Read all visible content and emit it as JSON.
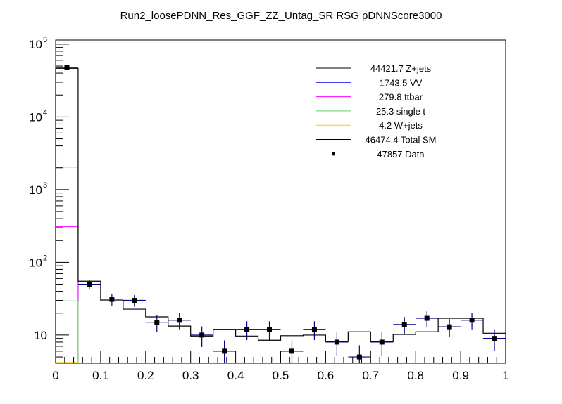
{
  "chart_data": {
    "type": "bar",
    "title": "Run2_loosePDNN_Res_GGF_ZZ_Untag_SR RSG  pDNNScore3000",
    "xlabel": "",
    "ylabel": "",
    "xlim": [
      0,
      1
    ],
    "ylim": [
      4.1,
      114000
    ],
    "yscale": "log",
    "grid": false,
    "legend_placement": "top-right",
    "x_tick_labels": [
      "0",
      "0.1",
      "0.2",
      "0.3",
      "0.4",
      "0.5",
      "0.6",
      "0.7",
      "0.8",
      "0.9",
      "1"
    ],
    "y_tick_labels": [
      {
        "base": "10",
        "exp": ""
      },
      {
        "base": "10",
        "exp": "2"
      },
      {
        "base": "10",
        "exp": "3"
      },
      {
        "base": "10",
        "exp": "4"
      },
      {
        "base": "10",
        "exp": "5"
      }
    ],
    "bin_edges": [
      0,
      0.05,
      0.1,
      0.15,
      0.2,
      0.25,
      0.3,
      0.35,
      0.4,
      0.45,
      0.5,
      0.55,
      0.6,
      0.65,
      0.7,
      0.75,
      0.8,
      0.85,
      0.9,
      0.95,
      1.0
    ],
    "total_sm": [
      46474.4,
      55,
      29.7,
      22.7,
      17.8,
      13.3,
      9.7,
      12,
      9.7,
      8.5,
      9.8,
      10,
      8.2,
      11.1,
      8.1,
      10.2,
      11.1,
      17,
      17,
      10.6
    ],
    "stack_first_bin": [
      {
        "name": "VV",
        "cumulative": 2052.8,
        "color": "#0000ff"
      },
      {
        "name": "ttbar",
        "cumulative": 309.3,
        "color": "#ff00ff"
      },
      {
        "name": "single t",
        "cumulative": 29.5,
        "color": "#66cc66"
      },
      {
        "name": "W+jets",
        "cumulative": 4.2,
        "color": "#ffcc00"
      }
    ],
    "data": [
      47857,
      50,
      31,
      30,
      15,
      16,
      10,
      6,
      12,
      12,
      6,
      12,
      8,
      5,
      8,
      14,
      17,
      13,
      16,
      9
    ],
    "legend": [
      {
        "label": "44421.7 Z+jets",
        "color": "#000000",
        "style": "line"
      },
      {
        "label": "1743.5 VV",
        "color": "#0000ff",
        "style": "line"
      },
      {
        "label": "279.8 ttbar",
        "color": "#ff00ff",
        "style": "line"
      },
      {
        "label": "25.3 single t",
        "color": "#66cc66",
        "style": "line"
      },
      {
        "label": "4.2 W+jets",
        "color": "#ffcc00",
        "style": "line"
      },
      {
        "label": "46474.4 Total SM",
        "color": "#000000",
        "style": "line"
      },
      {
        "label": "47857 Data",
        "color": "#000000",
        "style": "marker"
      }
    ],
    "data_error_color": "#00008b"
  }
}
